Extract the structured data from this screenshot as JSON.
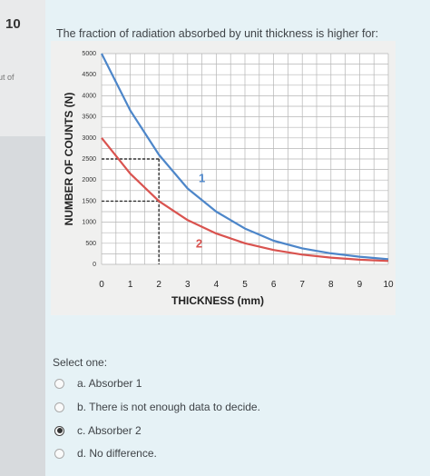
{
  "question": {
    "number": "10",
    "meta": "ut of",
    "text": "The fraction of radiation absorbed by unit thickness is higher for:"
  },
  "prompt": "Select one:",
  "options": [
    {
      "label": "a. Absorber 1",
      "selected": false
    },
    {
      "label": "b. There is not enough data to decide.",
      "selected": false
    },
    {
      "label": "c. Absorber 2",
      "selected": true
    },
    {
      "label": "d. No difference.",
      "selected": false
    }
  ],
  "chart_data": {
    "type": "line",
    "xlabel": "THICKNESS (mm)",
    "ylabel": "NUMBER OF COUNTS (N)",
    "xlim": [
      0,
      10
    ],
    "ylim": [
      0,
      5000
    ],
    "x_ticks": [
      0,
      1,
      2,
      3,
      4,
      5,
      6,
      7,
      8,
      9,
      10
    ],
    "y_ticks": [
      0,
      500,
      1000,
      1500,
      2000,
      2500,
      3000,
      3500,
      4000,
      4500,
      5000
    ],
    "grid": true,
    "series": [
      {
        "name": "1",
        "color": "#4d86c9",
        "x": [
          0,
          1,
          2,
          3,
          4,
          5,
          6,
          7,
          8,
          9,
          10
        ],
        "y": [
          5000,
          3650,
          2600,
          1800,
          1250,
          850,
          560,
          380,
          260,
          180,
          120
        ]
      },
      {
        "name": "2",
        "color": "#d9534f",
        "x": [
          0,
          1,
          2,
          3,
          4,
          5,
          6,
          7,
          8,
          9,
          10
        ],
        "y": [
          3000,
          2150,
          1500,
          1050,
          730,
          500,
          340,
          230,
          160,
          110,
          80
        ]
      }
    ],
    "reference_lines": [
      {
        "x": 2,
        "y": 2500
      },
      {
        "x": 2,
        "y": 1500
      }
    ]
  }
}
